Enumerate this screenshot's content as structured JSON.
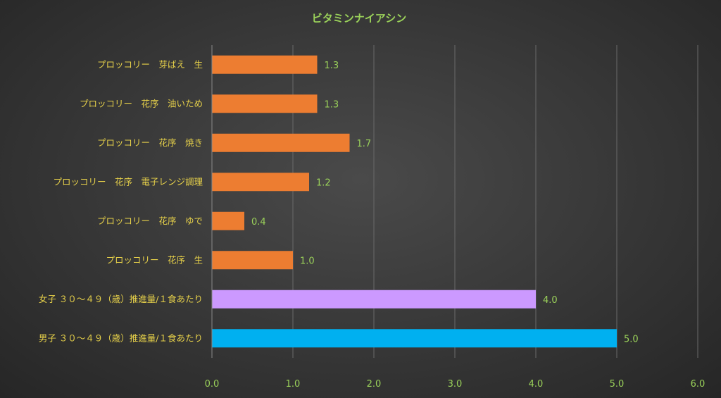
{
  "chart_data": {
    "type": "bar",
    "orientation": "horizontal",
    "title": "ビタミンナイアシン",
    "categories": [
      "プロッコリー　芽ばえ　生",
      "プロッコリー　花序　油いため",
      "プロッコリー　花序　焼き",
      "プロッコリー　花序　電子レンジ調理",
      "プロッコリー　花序　ゆで",
      "プロッコリー　花序　生",
      "女子 ３０～４９（歳）推進量/１食あたり",
      "男子 ３０～４９（歳）推進量/１食あたり"
    ],
    "values": [
      1.3,
      1.3,
      1.7,
      1.2,
      0.4,
      1.0,
      4.0,
      5.0
    ],
    "value_labels": [
      "1.3",
      "1.3",
      "1.7",
      "1.2",
      "0.4",
      "1.0",
      "4.0",
      "5.0"
    ],
    "bar_colors": [
      "#ed7d31",
      "#ed7d31",
      "#ed7d31",
      "#ed7d31",
      "#ed7d31",
      "#ed7d31",
      "#cc99ff",
      "#00b0f0"
    ],
    "xlim": [
      0,
      6
    ],
    "x_ticks": [
      "0.0",
      "1.0",
      "2.0",
      "3.0",
      "4.0",
      "5.0",
      "6.0"
    ],
    "grid": true,
    "legend": "none",
    "xlabel": "",
    "ylabel": ""
  },
  "colors": {
    "category_text": "#e8d24a",
    "value_text": "#9bd25a",
    "title_text": "#9bd25a",
    "gridline": "#6a6a6a"
  }
}
